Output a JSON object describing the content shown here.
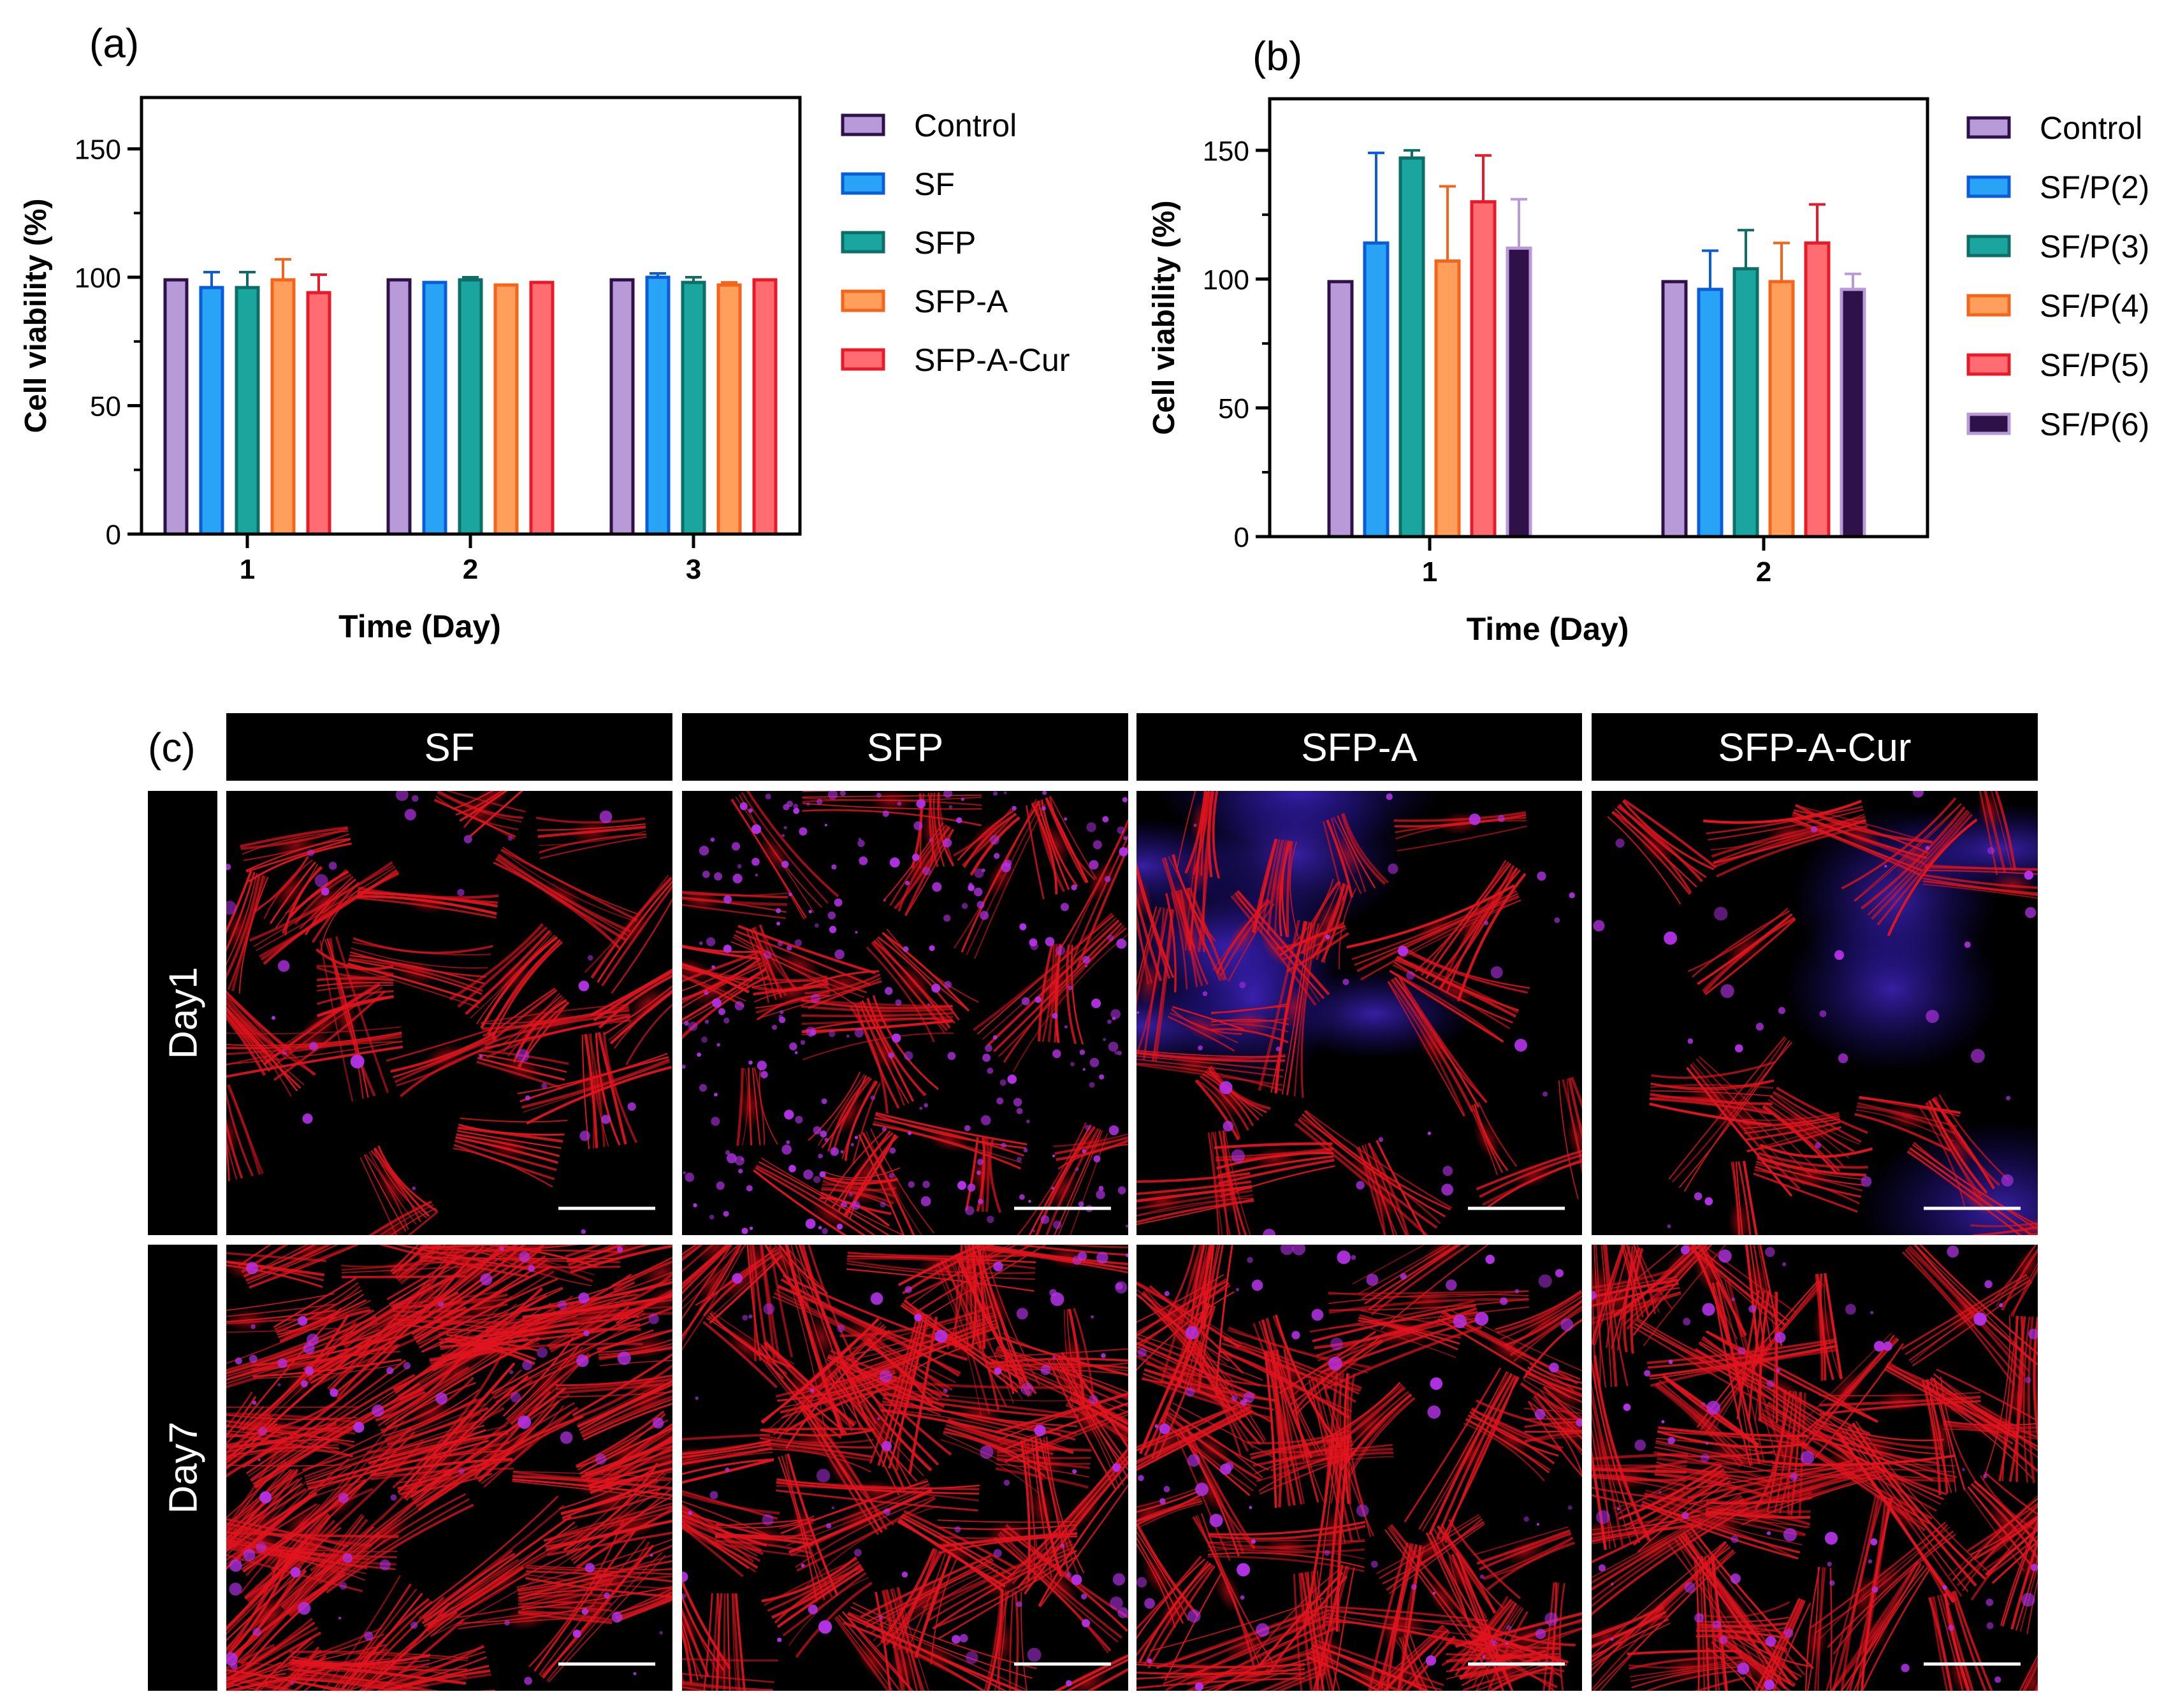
{
  "panel_labels": {
    "a": "(a)",
    "b": "(b)",
    "c": "(c)"
  },
  "chart_data": [
    {
      "type": "bar",
      "panel": "a",
      "title": "",
      "xlabel": "Time (Day)",
      "ylabel": "Cell viability (%)",
      "ylim": [
        0,
        170
      ],
      "yticks": [
        0,
        50,
        100,
        150
      ],
      "categories": [
        "1",
        "2",
        "3"
      ],
      "legend_position": "right",
      "series": [
        {
          "name": "Control",
          "values": [
            99,
            99,
            99
          ],
          "errors": [
            0,
            0,
            0
          ],
          "color": "#b89ad8",
          "edge": "#2d1148"
        },
        {
          "name": "SF",
          "values": [
            96,
            98,
            100
          ],
          "errors": [
            6,
            0,
            1.5
          ],
          "color": "#29a3f5",
          "edge": "#0a5cd9"
        },
        {
          "name": "SFP",
          "values": [
            96,
            99,
            98
          ],
          "errors": [
            6,
            1,
            2
          ],
          "color": "#1aa59e",
          "edge": "#0d6e68"
        },
        {
          "name": "SFP-A",
          "values": [
            99,
            97,
            97
          ],
          "errors": [
            8,
            0,
            1
          ],
          "color": "#ff9f5b",
          "edge": "#f5641a"
        },
        {
          "name": "SFP-A-Cur",
          "values": [
            94,
            98,
            99
          ],
          "errors": [
            7,
            0,
            0
          ],
          "color": "#ff6d73",
          "edge": "#e81a2a"
        }
      ]
    },
    {
      "type": "bar",
      "panel": "b",
      "title": "",
      "xlabel": "Time (Day)",
      "ylabel": "Cell viability (%)",
      "ylim": [
        0,
        170
      ],
      "yticks": [
        0,
        50,
        100,
        150
      ],
      "categories": [
        "1",
        "2"
      ],
      "legend_position": "right",
      "series": [
        {
          "name": "Control",
          "values": [
            99,
            99
          ],
          "errors": [
            0,
            0
          ],
          "color": "#b89ad8",
          "edge": "#2d1148"
        },
        {
          "name": "SF/P(2)",
          "values": [
            114,
            96
          ],
          "errors": [
            35,
            15
          ],
          "color": "#29a3f5",
          "edge": "#0a5cd9"
        },
        {
          "name": "SF/P(3)",
          "values": [
            147,
            104
          ],
          "errors": [
            3,
            15
          ],
          "color": "#1aa59e",
          "edge": "#0d6e68"
        },
        {
          "name": "SF/P(4)",
          "values": [
            107,
            99
          ],
          "errors": [
            29,
            15
          ],
          "color": "#ff9f5b",
          "edge": "#f5641a"
        },
        {
          "name": "SF/P(5)",
          "values": [
            130,
            114
          ],
          "errors": [
            18,
            15
          ],
          "color": "#ff6d73",
          "edge": "#e81a2a"
        },
        {
          "name": "SF/P(6)",
          "values": [
            112,
            96
          ],
          "errors": [
            19,
            6
          ],
          "color": "#2d1148",
          "edge": "#b89ad8"
        }
      ]
    }
  ],
  "micrographs": {
    "columns": [
      "SF",
      "SFP",
      "SFP-A",
      "SFP-A-Cur"
    ],
    "rows": [
      "Day1",
      "Day7"
    ]
  },
  "colors": {
    "actin": "#e0141e",
    "nuclei": "#b432e6",
    "background": "#000000"
  }
}
